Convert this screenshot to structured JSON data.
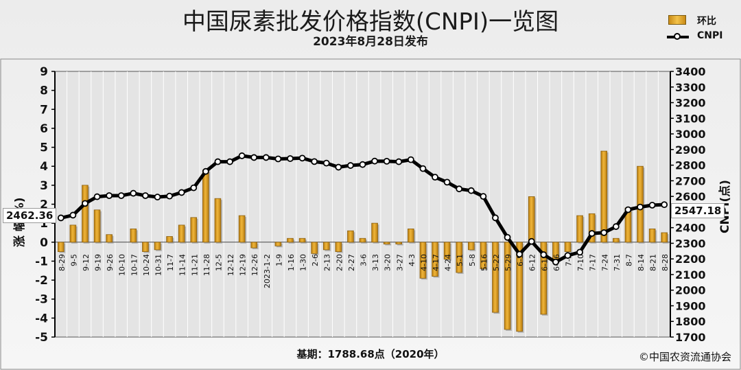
{
  "title": "中国尿素批发价格指数(CNPI)一览图",
  "subtitle": "2023年8月28日发布",
  "legend": {
    "bar_label": "环比",
    "line_label": "CNPI"
  },
  "baseline_note": "基期：1788.68点（2020年）",
  "copyright": "©中国农资流通协会",
  "colors": {
    "bar": "#f0b63a",
    "bar_edge": "#8a5f10",
    "line": "#000000",
    "plot_bg": "#e4e4e4",
    "grid": "#ffffff"
  },
  "chart_data": {
    "type": "bar",
    "categories": [
      "8-29",
      "9-5",
      "9-12",
      "9-19",
      "9-26",
      "10-10",
      "10-17",
      "10-24",
      "10-31",
      "11-7",
      "11-14",
      "11-21",
      "11-28",
      "12-5",
      "12-12",
      "12-19",
      "12-26",
      "2023-1-2",
      "1-9",
      "1-16",
      "1-30",
      "2-6",
      "2-13",
      "2-20",
      "2-27",
      "3-6",
      "3-13",
      "3-20",
      "3-27",
      "4-3",
      "4-10",
      "4-17",
      "4-24",
      "5-1",
      "5-8",
      "5-16",
      "5-22",
      "5-29",
      "6-5",
      "6-12",
      "6-19",
      "6-26",
      "7-3",
      "7-10",
      "7-17",
      "7-24",
      "7-31",
      "8-7",
      "8-14",
      "8-21",
      "8-28"
    ],
    "tick_labels": [
      "8-29",
      "9-5",
      "9-12",
      "9-19",
      "9-26",
      "10-10",
      "10-17",
      "10-24",
      "10-31",
      "11-7",
      "11-14",
      "11-21",
      "11-28",
      "12-5",
      "12-12",
      "12-19",
      "12-26",
      "2023-1-2",
      "1-9",
      "1-16",
      "1-30",
      "2-6",
      "2-13",
      "2-20",
      "2-27",
      "3-6",
      "3-13",
      "3-20",
      "3-27",
      "4-3",
      "4-10",
      "4-17",
      "4-24",
      "5-1",
      "5-8",
      "5-16",
      "5-22",
      "5-29",
      "6-5",
      "6-12",
      "6-19",
      "6-26",
      "7-3",
      "7-10",
      "7-17",
      "7-24",
      "7-31",
      "8-7",
      "8-14",
      "8-21",
      "8-28"
    ],
    "series": [
      {
        "name": "环比",
        "axis": "left",
        "type": "bar",
        "values": [
          -0.5,
          0.9,
          3.0,
          1.7,
          0.4,
          0.0,
          0.7,
          -0.5,
          -0.4,
          0.3,
          0.9,
          1.3,
          3.8,
          2.3,
          0.0,
          1.4,
          -0.3,
          0.0,
          -0.2,
          0.2,
          0.2,
          -0.6,
          -0.4,
          -0.5,
          0.6,
          0.2,
          1.0,
          -0.1,
          -0.1,
          0.7,
          -1.9,
          -1.8,
          -0.9,
          -1.6,
          -0.4,
          -1.4,
          -3.7,
          -4.6,
          -4.7,
          2.4,
          -3.8,
          -0.9,
          -0.5,
          1.4,
          1.5,
          4.8,
          0.2,
          1.8,
          4.0,
          0.7,
          0.5
        ]
      },
      {
        "name": "CNPI",
        "axis": "right",
        "type": "line",
        "values": [
          2462.36,
          2480,
          2555,
          2598,
          2605,
          2605,
          2620,
          2605,
          2596,
          2602,
          2625,
          2655,
          2760,
          2822,
          2822,
          2860,
          2849,
          2849,
          2840,
          2842,
          2845,
          2823,
          2813,
          2787,
          2798,
          2804,
          2826,
          2825,
          2822,
          2835,
          2778,
          2723,
          2691,
          2648,
          2637,
          2600,
          2463,
          2338,
          2230,
          2312,
          2227,
          2180,
          2222,
          2243,
          2363,
          2368,
          2407,
          2515,
          2532,
          2544,
          2547.18
        ]
      }
    ],
    "ylabel_left": "涨 幅(%)",
    "ylabel_right": "CNPI(点)",
    "ylim_left": [
      -5,
      9
    ],
    "ylim_right": [
      1700,
      3400
    ],
    "yticks_left": [
      "9",
      "8",
      "7",
      "6",
      "5",
      "4",
      "3",
      "2",
      "1",
      "0",
      "-1",
      "-2",
      "-3",
      "-4",
      "-5"
    ],
    "yticks_right": [
      "3400",
      "3300",
      "3200",
      "3100",
      "3000",
      "2900",
      "2800",
      "2700",
      "2600",
      "2500",
      "2400",
      "2300",
      "2200",
      "2100",
      "2000",
      "1900",
      "1800",
      "1700"
    ],
    "callouts": {
      "first": "2462.36",
      "last": "2547.18"
    },
    "grid": true
  }
}
